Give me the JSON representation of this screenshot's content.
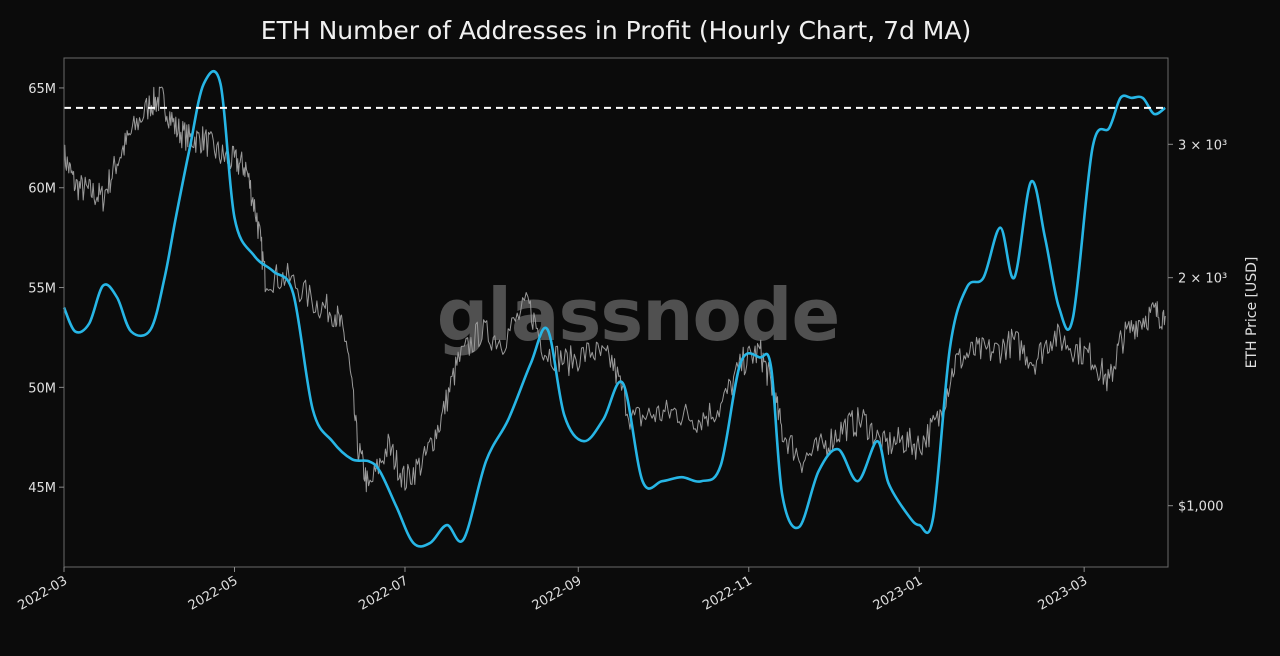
{
  "chart_data": {
    "type": "line",
    "title": "ETH Number of Addresses in Profit (Hourly Chart, 7d MA)",
    "watermark": "glassnode",
    "x_axis": {
      "range": [
        "2022-03-01",
        "2023-03-31"
      ],
      "ticks": [
        "2022-03",
        "2022-05",
        "2022-07",
        "2022-09",
        "2022-11",
        "2023-01",
        "2023-03"
      ],
      "tick_dates": [
        "2022-03-01",
        "2022-05-01",
        "2022-07-01",
        "2022-09-01",
        "2022-11-01",
        "2023-01-01",
        "2023-03-01"
      ]
    },
    "y_left": {
      "range": [
        41,
        66.5
      ],
      "ticks": [
        "45M",
        "50M",
        "55M",
        "60M",
        "65M"
      ],
      "tick_values": [
        45,
        50,
        55,
        60,
        65
      ],
      "unit": "M"
    },
    "y_right": {
      "label": "ETH Price [USD]",
      "scale": "log",
      "range": [
        830,
        3900
      ],
      "ticks": [
        "$1,000",
        "2 × 10³",
        "3 × 10³"
      ],
      "tick_values": [
        1000,
        2000,
        3000
      ]
    },
    "reference_line": {
      "value": 64.0,
      "style": "dashed",
      "color": "#ffffff"
    },
    "series": [
      {
        "color": "#27b6e6",
        "x": [
          "2022-03-01",
          "2022-03-05",
          "2022-03-10",
          "2022-03-15",
          "2022-03-20",
          "2022-03-25",
          "2022-04-01",
          "2022-04-06",
          "2022-04-10",
          "2022-04-15",
          "2022-04-20",
          "2022-04-26",
          "2022-05-01",
          "2022-05-08",
          "2022-05-15",
          "2022-05-22",
          "2022-05-29",
          "2022-06-05",
          "2022-06-12",
          "2022-06-18",
          "2022-06-22",
          "2022-06-28",
          "2022-07-04",
          "2022-07-10",
          "2022-07-16",
          "2022-07-22",
          "2022-07-30",
          "2022-08-07",
          "2022-08-15",
          "2022-08-21",
          "2022-08-27",
          "2022-09-03",
          "2022-09-10",
          "2022-09-17",
          "2022-09-24",
          "2022-10-01",
          "2022-10-08",
          "2022-10-15",
          "2022-10-22",
          "2022-10-29",
          "2022-11-05",
          "2022-11-09",
          "2022-11-13",
          "2022-11-19",
          "2022-11-26",
          "2022-12-03",
          "2022-12-10",
          "2022-12-17",
          "2022-12-21",
          "2022-12-28",
          "2023-01-01",
          "2023-01-06",
          "2023-01-12",
          "2023-01-18",
          "2023-01-24",
          "2023-01-30",
          "2023-02-04",
          "2023-02-10",
          "2023-02-15",
          "2023-02-20",
          "2023-02-25",
          "2023-03-04",
          "2023-03-10",
          "2023-03-14",
          "2023-03-18",
          "2023-03-22",
          "2023-03-26",
          "2023-03-30"
        ],
        "values": [
          54,
          52.8,
          53.2,
          55.1,
          54.5,
          52.8,
          52.9,
          55.5,
          58.5,
          62.0,
          65.2,
          65.2,
          58.5,
          56.6,
          55.8,
          54.7,
          48.9,
          47.3,
          46.4,
          46.3,
          45.8,
          44.0,
          42.2,
          42.2,
          43.1,
          42.4,
          46.3,
          48.4,
          51.2,
          52.9,
          48.6,
          47.3,
          48.4,
          50.2,
          45.3,
          45.3,
          45.5,
          45.3,
          46.1,
          51.2,
          51.5,
          51.0,
          44.6,
          43.0,
          45.8,
          46.9,
          45.3,
          47.3,
          45.2,
          43.6,
          43.1,
          43.5,
          52.0,
          55.0,
          55.5,
          58.0,
          55.5,
          60.3,
          57.5,
          54.0,
          53.5,
          62.0,
          63.0,
          64.5,
          64.5,
          64.5,
          63.7,
          64.0
        ]
      },
      {
        "color": "#9a9a9a",
        "axis": "right",
        "x": [
          "2022-03-01",
          "2022-03-05",
          "2022-03-10",
          "2022-03-15",
          "2022-03-20",
          "2022-03-25",
          "2022-04-01",
          "2022-04-05",
          "2022-04-10",
          "2022-04-15",
          "2022-04-20",
          "2022-04-26",
          "2022-05-01",
          "2022-05-05",
          "2022-05-09",
          "2022-05-12",
          "2022-05-20",
          "2022-05-30",
          "2022-06-06",
          "2022-06-10",
          "2022-06-14",
          "2022-06-18",
          "2022-06-25",
          "2022-07-01",
          "2022-07-08",
          "2022-07-14",
          "2022-07-20",
          "2022-07-28",
          "2022-08-05",
          "2022-08-14",
          "2022-08-20",
          "2022-08-28",
          "2022-09-06",
          "2022-09-13",
          "2022-09-20",
          "2022-09-28",
          "2022-10-06",
          "2022-10-14",
          "2022-10-22",
          "2022-10-30",
          "2022-11-05",
          "2022-11-09",
          "2022-11-13",
          "2022-11-20",
          "2022-11-28",
          "2022-12-05",
          "2022-12-12",
          "2022-12-19",
          "2022-12-26",
          "2023-01-01",
          "2023-01-08",
          "2023-01-14",
          "2023-01-21",
          "2023-01-28",
          "2023-02-04",
          "2023-02-11",
          "2023-02-18",
          "2023-02-25",
          "2023-03-04",
          "2023-03-10",
          "2023-03-14",
          "2023-03-20",
          "2023-03-26",
          "2023-03-30"
        ],
        "values": [
          2900,
          2650,
          2600,
          2550,
          2850,
          3100,
          3400,
          3450,
          3150,
          3050,
          3050,
          2900,
          2850,
          2800,
          2400,
          2000,
          2000,
          1850,
          1800,
          1650,
          1200,
          1050,
          1200,
          1080,
          1150,
          1300,
          1550,
          1700,
          1650,
          1850,
          1600,
          1550,
          1600,
          1550,
          1300,
          1320,
          1330,
          1300,
          1350,
          1550,
          1600,
          1450,
          1250,
          1150,
          1200,
          1270,
          1300,
          1200,
          1220,
          1200,
          1300,
          1550,
          1600,
          1600,
          1650,
          1550,
          1680,
          1620,
          1570,
          1450,
          1650,
          1750,
          1800,
          1780
        ]
      }
    ]
  }
}
